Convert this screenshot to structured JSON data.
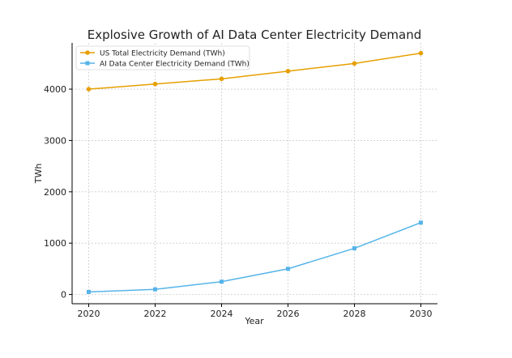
{
  "chart_data": {
    "type": "line",
    "title": "Explosive Growth of AI Data Center Electricity Demand",
    "xlabel": "Year",
    "ylabel": "TWh",
    "x": [
      2020,
      2022,
      2024,
      2026,
      2028,
      2030
    ],
    "xlim": [
      2019.5,
      2030.5
    ],
    "ylim": [
      -180,
      4900
    ],
    "xticks": [
      2020,
      2022,
      2024,
      2026,
      2028,
      2030
    ],
    "yticks": [
      0,
      1000,
      2000,
      3000,
      4000
    ],
    "grid": true,
    "legend_position": "top-left",
    "series": [
      {
        "name": "US Total Electricity Demand (TWh)",
        "color": "#E69F00",
        "marker": "circle",
        "values": [
          4000,
          4100,
          4200,
          4350,
          4500,
          4700
        ]
      },
      {
        "name": "AI Data Center Electricity Demand (TWh)",
        "color": "#56B4E9",
        "marker": "square",
        "values": [
          50,
          100,
          250,
          500,
          900,
          1400
        ]
      }
    ]
  }
}
